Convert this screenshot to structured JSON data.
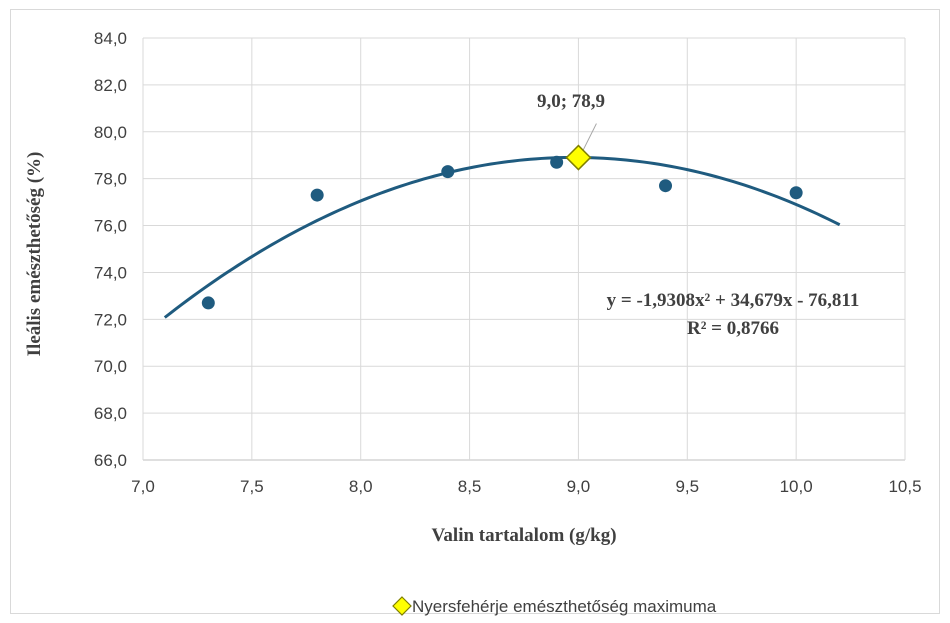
{
  "chart_data": {
    "type": "scatter",
    "xlabel": "Valin tartalalom (g/kg)",
    "ylabel": "Ileális emészthetőség (%)",
    "xlim": [
      7.0,
      10.5
    ],
    "ylim": [
      66.0,
      84.0
    ],
    "x_ticks": [
      "7,0",
      "7,5",
      "8,0",
      "8,5",
      "9,0",
      "9,5",
      "10,0",
      "10,5"
    ],
    "y_ticks": [
      "66,0",
      "68,0",
      "70,0",
      "72,0",
      "74,0",
      "76,0",
      "78,0",
      "80,0",
      "82,0",
      "84,0"
    ],
    "grid": true,
    "points": [
      {
        "x": 7.3,
        "y": 72.7
      },
      {
        "x": 7.8,
        "y": 77.3
      },
      {
        "x": 8.4,
        "y": 78.3
      },
      {
        "x": 8.9,
        "y": 78.7
      },
      {
        "x": 9.4,
        "y": 77.7
      },
      {
        "x": 10.0,
        "y": 77.4
      }
    ],
    "trendline": {
      "type": "polynomial",
      "coefficients": [
        -1.9308,
        34.679,
        -76.811
      ],
      "x_range": [
        7.1,
        10.2
      ],
      "equation": "y = -1,9308x² + 34,679x - 76,811",
      "r_squared": "R² = 0,8766"
    },
    "maximum": {
      "x": 9.0,
      "y": 78.9,
      "label": "9,0; 78,9",
      "legend": "Nyersfehérje emészthetőség maximuma"
    },
    "colors": {
      "points": "#1f5b7f",
      "trendline": "#1f5b7f",
      "marker_fill": "#ffff00",
      "marker_stroke": "#7f7f00",
      "grid": "#d9d9d9"
    }
  }
}
